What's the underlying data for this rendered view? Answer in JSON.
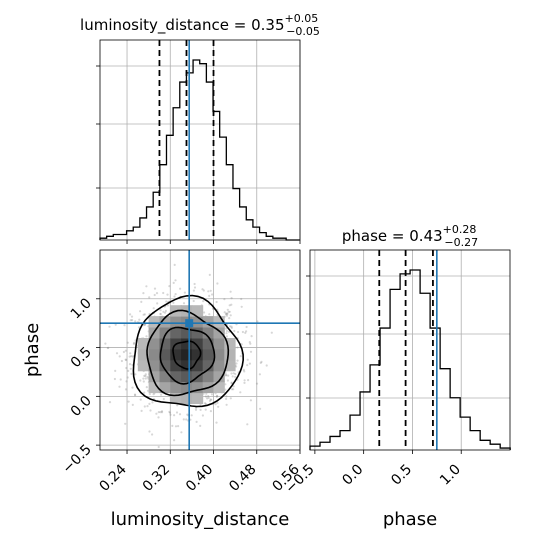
{
  "chart_data": [
    {
      "type": "histogram",
      "panel": "marginal",
      "parameter": "luminosity_distance",
      "title": {
        "prefix": "luminosity_distance = 0.35",
        "plus": "+0.05",
        "minus": "−0.05"
      },
      "xlim": [
        0.19,
        0.56
      ],
      "bins": [
        0.19,
        0.2023,
        0.2146,
        0.2269,
        0.2392,
        0.2515,
        0.2638,
        0.2761,
        0.2884,
        0.3007,
        0.313,
        0.3253,
        0.3376,
        0.3499,
        0.3622,
        0.3745,
        0.3868,
        0.3991,
        0.4114,
        0.4237,
        0.436,
        0.4483,
        0.4606,
        0.4729,
        0.4852,
        0.4975,
        0.5098,
        0.5221,
        0.5344,
        0.5467,
        0.559
      ],
      "counts": [
        0.01,
        0.02,
        0.03,
        0.03,
        0.05,
        0.07,
        0.12,
        0.18,
        0.26,
        0.41,
        0.57,
        0.72,
        0.86,
        0.91,
        0.98,
        0.96,
        0.86,
        0.7,
        0.56,
        0.41,
        0.28,
        0.18,
        0.11,
        0.07,
        0.04,
        0.02,
        0.01,
        0.01,
        0,
        0
      ],
      "quantiles": [
        0.3,
        0.35,
        0.4
      ],
      "truth": 0.355
    },
    {
      "type": "scatter",
      "panel": "joint",
      "x_parameter": "luminosity_distance",
      "y_parameter": "phase",
      "xlabel": "luminosity_distance",
      "ylabel": "phase",
      "xlim": [
        0.19,
        0.56
      ],
      "ylim": [
        -0.55,
        1.5
      ],
      "xticks": [
        "0.24",
        "0.32",
        "0.40",
        "0.48",
        "0.56"
      ],
      "xtick_values": [
        0.24,
        0.32,
        0.4,
        0.48,
        0.56
      ],
      "yticks": [
        "−0.5",
        "0.0",
        "0.5",
        "1.0"
      ],
      "ytick_values": [
        -0.5,
        0.0,
        0.5,
        1.0
      ],
      "center": [
        0.35,
        0.43
      ],
      "spread": [
        0.05,
        0.28
      ],
      "contour_levels_sigma": [
        0.5,
        1.0,
        1.5,
        2.0
      ],
      "truth": [
        0.355,
        0.75
      ]
    },
    {
      "type": "histogram",
      "panel": "marginal",
      "parameter": "phase",
      "title": {
        "prefix": "phase = 0.43",
        "plus": "+0.28",
        "minus": "−0.27"
      },
      "xlabel": "phase",
      "xlim": [
        -0.55,
        1.5
      ],
      "xticks": [
        "−0.5",
        "0.0",
        "0.5",
        "1.0"
      ],
      "xtick_values": [
        -0.5,
        0.0,
        0.5,
        1.0
      ],
      "bins": [
        -0.55,
        -0.4474,
        -0.3448,
        -0.2422,
        -0.1396,
        -0.037,
        0.0656,
        0.1682,
        0.2708,
        0.3734,
        0.476,
        0.5786,
        0.6812,
        0.7838,
        0.8864,
        0.989,
        1.0916,
        1.1942,
        1.2968,
        1.3994,
        1.502
      ],
      "counts": [
        0.02,
        0.04,
        0.07,
        0.1,
        0.18,
        0.3,
        0.44,
        0.63,
        0.83,
        0.91,
        0.93,
        0.81,
        0.63,
        0.42,
        0.27,
        0.17,
        0.1,
        0.05,
        0.03,
        0.01
      ],
      "quantiles": [
        0.16,
        0.43,
        0.71
      ],
      "truth": 0.75
    }
  ]
}
